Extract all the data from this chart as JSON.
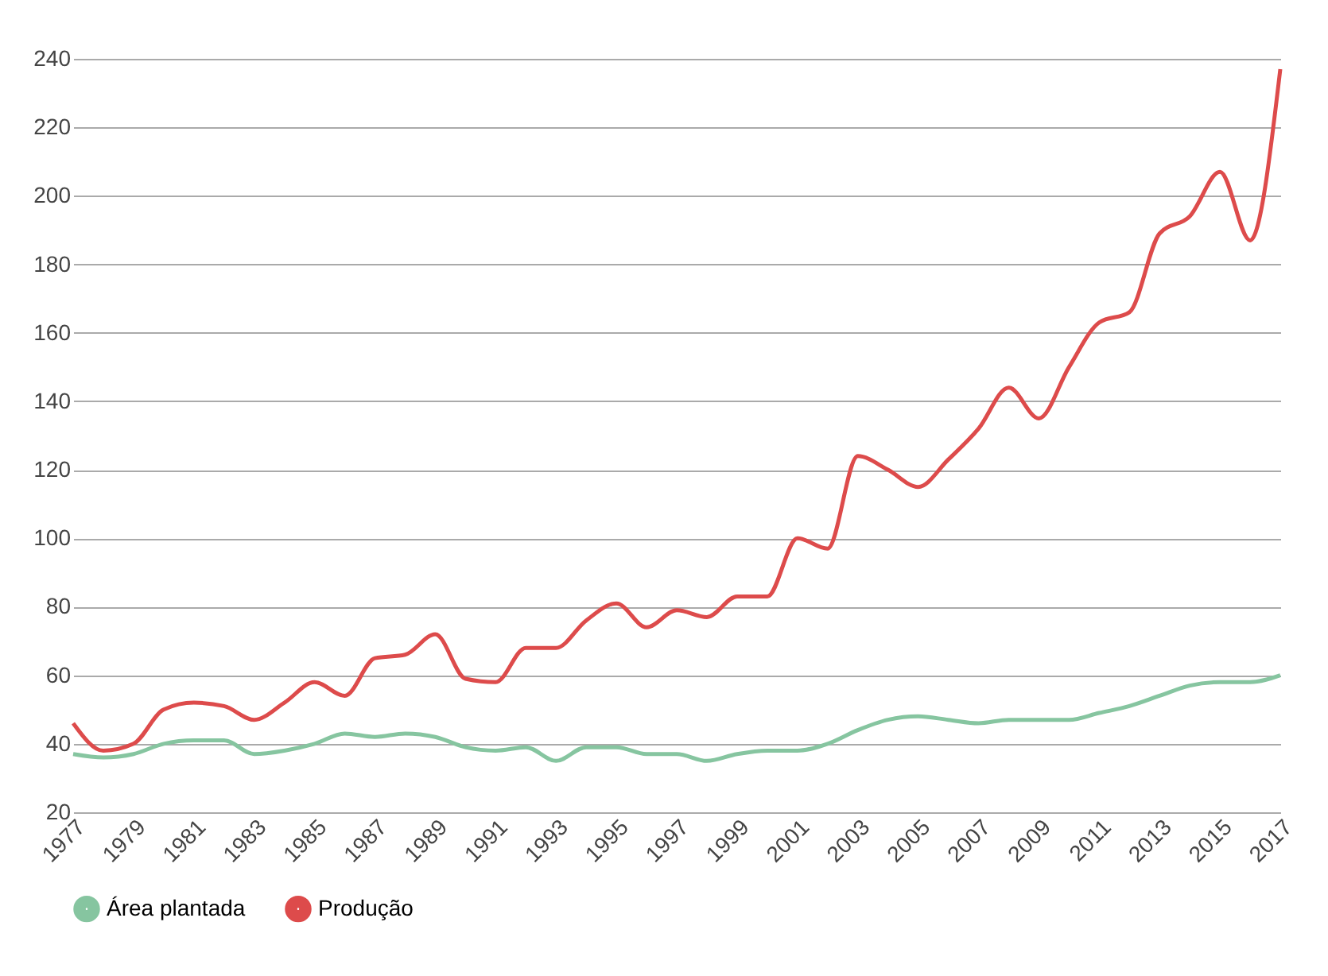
{
  "chart_data": {
    "type": "line",
    "categories": [
      "1977",
      null,
      "1979",
      null,
      "1981",
      null,
      "1983",
      null,
      "1985",
      null,
      "1987",
      null,
      "1989",
      null,
      "1991",
      null,
      "1993",
      null,
      "1995",
      null,
      "1997",
      null,
      "1999",
      null,
      "2001",
      null,
      "2003",
      null,
      "2005",
      null,
      "2007",
      null,
      "2009",
      null,
      "2011",
      null,
      "2013",
      null,
      "2015",
      null,
      "2017"
    ],
    "series": [
      {
        "name": "Área plantada",
        "color": "#86c5a0",
        "values": [
          37,
          36,
          37,
          40,
          41,
          41,
          37,
          38,
          40,
          43,
          42,
          43,
          42,
          39,
          38,
          39,
          35,
          39,
          39,
          37,
          37,
          35,
          37,
          38,
          38,
          40,
          44,
          47,
          48,
          47,
          46,
          47,
          47,
          47,
          49,
          51,
          54,
          57,
          58,
          58,
          60
        ]
      },
      {
        "name": "Produção",
        "color": "#dd4b4b",
        "values": [
          46,
          38,
          40,
          50,
          52,
          51,
          47,
          52,
          58,
          54,
          65,
          66,
          72,
          59,
          58,
          68,
          68,
          76,
          81,
          74,
          79,
          77,
          83,
          83,
          100,
          97,
          124,
          120,
          115,
          123,
          132,
          144,
          135,
          150,
          163,
          166,
          189,
          194,
          207,
          187,
          237
        ]
      }
    ],
    "ylim": [
      20,
      240
    ],
    "yticks": [
      20,
      40,
      60,
      80,
      100,
      120,
      140,
      160,
      180,
      200,
      220,
      240
    ],
    "grid": "y",
    "legend": "bottom",
    "marker": "none",
    "line_style": "solid"
  }
}
